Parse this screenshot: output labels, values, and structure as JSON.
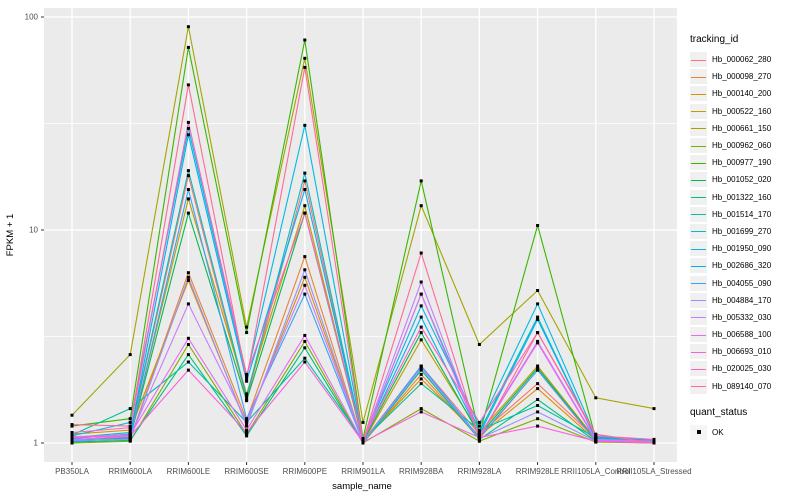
{
  "chart_data": {
    "type": "line",
    "title": "",
    "xlabel": "sample_name",
    "ylabel": "FPKM + 1",
    "y_scale": "log10",
    "ylim": [
      0.8,
      110
    ],
    "y_ticks": [
      1,
      10,
      100
    ],
    "y_tick_labels": [
      "1",
      "10",
      "100"
    ],
    "y_minor_gridlines": [
      3.1623,
      31.623
    ],
    "grid": true,
    "legend_position": "right",
    "panel_bg": "#EBEBEB",
    "grid_color": "#FFFFFF",
    "tick_label_color": "#4D4D4D",
    "axis_title_color": "#000000",
    "point_shape": "square",
    "point_color": "#000000",
    "categories": [
      "PB350LA",
      "RRIM600LA",
      "RRIM600LE",
      "RRIM600SE",
      "RRIM600PE",
      "RRIM901LA",
      "RRIM928BA",
      "RRIM928LA",
      "RRIM928LE",
      "RRII105LA_Control",
      "RRII105LA_Stressed"
    ],
    "series": [
      {
        "name": "Hb_000062_280",
        "color": "#F8766D",
        "values": [
          1.05,
          1.1,
          18.0,
          1.6,
          17.0,
          1.02,
          2.3,
          1.1,
          1.9,
          1.05,
          1.02
        ]
      },
      {
        "name": "Hb_000098_270",
        "color": "#EA8331",
        "values": [
          1.02,
          1.05,
          6.3,
          1.28,
          7.5,
          1.0,
          2.1,
          1.05,
          2.2,
          1.02,
          1.0
        ]
      },
      {
        "name": "Hb_000140_200",
        "color": "#D89000",
        "values": [
          1.1,
          1.15,
          5.8,
          1.22,
          6.0,
          1.02,
          2.0,
          1.08,
          1.8,
          1.03,
          1.01
        ]
      },
      {
        "name": "Hb_000522_160",
        "color": "#C09B00",
        "values": [
          1.03,
          1.08,
          14.0,
          1.7,
          13.0,
          1.01,
          3.05,
          1.12,
          2.3,
          1.04,
          1.02
        ]
      },
      {
        "name": "Hb_000661_150",
        "color": "#A3A500",
        "values": [
          1.35,
          2.6,
          90.0,
          3.5,
          64.0,
          1.25,
          13.0,
          2.9,
          5.2,
          1.63,
          1.45
        ]
      },
      {
        "name": "Hb_000962_060",
        "color": "#7CAE00",
        "values": [
          1.0,
          1.02,
          2.9,
          1.1,
          3.0,
          1.0,
          1.45,
          1.02,
          1.3,
          1.01,
          1.0
        ]
      },
      {
        "name": "Hb_000977_190",
        "color": "#39B600",
        "values": [
          1.2,
          1.3,
          72.0,
          3.3,
          78.0,
          1.05,
          17.0,
          1.1,
          10.5,
          1.05,
          1.02
        ]
      },
      {
        "name": "Hb_001052_020",
        "color": "#00BB4E",
        "values": [
          1.04,
          1.06,
          12.0,
          1.58,
          12.0,
          1.02,
          3.3,
          1.09,
          2.25,
          1.03,
          1.01
        ]
      },
      {
        "name": "Hb_001322_160",
        "color": "#00BF7D",
        "values": [
          1.01,
          1.03,
          2.6,
          1.08,
          2.8,
          1.0,
          2.2,
          1.04,
          1.6,
          1.02,
          1.01
        ]
      },
      {
        "name": "Hb_001514_170",
        "color": "#00C1A3",
        "values": [
          1.09,
          1.45,
          2.4,
          1.25,
          2.5,
          1.03,
          1.9,
          1.15,
          1.5,
          1.06,
          1.03
        ]
      },
      {
        "name": "Hb_001699_270",
        "color": "#00BFC4",
        "values": [
          1.06,
          1.12,
          19.0,
          1.65,
          18.5,
          1.02,
          5.0,
          1.13,
          3.9,
          1.04,
          1.02
        ]
      },
      {
        "name": "Hb_001950_090",
        "color": "#00BAE0",
        "values": [
          1.08,
          1.25,
          30.0,
          2.05,
          31.0,
          1.03,
          4.4,
          1.2,
          4.5,
          1.07,
          1.03
        ]
      },
      {
        "name": "Hb_002686_320",
        "color": "#00B0F6",
        "values": [
          1.05,
          1.1,
          28.0,
          1.95,
          15.5,
          1.02,
          3.9,
          1.1,
          3.8,
          1.05,
          1.02
        ]
      },
      {
        "name": "Hb_004055_090",
        "color": "#35A2FF",
        "values": [
          1.02,
          1.05,
          15.5,
          1.3,
          5.0,
          1.01,
          2.3,
          1.06,
          2.2,
          1.03,
          1.01
        ]
      },
      {
        "name": "Hb_004884_170",
        "color": "#9590FF",
        "values": [
          1.03,
          1.04,
          6.0,
          1.2,
          6.5,
          1.01,
          2.25,
          1.05,
          1.4,
          1.02,
          1.01
        ]
      },
      {
        "name": "Hb_005332_030",
        "color": "#C77CFF",
        "values": [
          1.04,
          1.07,
          4.5,
          1.26,
          5.5,
          1.02,
          5.7,
          1.08,
          3.0,
          1.04,
          1.02
        ]
      },
      {
        "name": "Hb_006588_100",
        "color": "#E76BF3",
        "values": [
          1.07,
          1.09,
          3.1,
          1.15,
          3.2,
          1.01,
          5.0,
          1.07,
          2.95,
          1.03,
          1.01
        ]
      },
      {
        "name": "Hb_006693_010",
        "color": "#FA62DB",
        "values": [
          1.06,
          1.08,
          2.2,
          1.12,
          2.4,
          1.01,
          1.4,
          1.06,
          1.2,
          1.02,
          1.0
        ]
      },
      {
        "name": "Hb_020025_030",
        "color": "#FF62BC",
        "values": [
          1.12,
          1.18,
          32.0,
          2.1,
          12.0,
          1.04,
          3.5,
          1.25,
          3.3,
          1.08,
          1.04
        ]
      },
      {
        "name": "Hb_089140_070",
        "color": "#FF6A98",
        "values": [
          1.22,
          1.2,
          48.0,
          2.0,
          58.0,
          1.02,
          7.8,
          1.05,
          3.3,
          1.1,
          1.0
        ]
      }
    ],
    "legend": {
      "title": "tracking_id"
    },
    "quant_legend": {
      "title": "quant_status",
      "items": [
        {
          "label": "OK",
          "marker": "black-square"
        }
      ]
    }
  }
}
